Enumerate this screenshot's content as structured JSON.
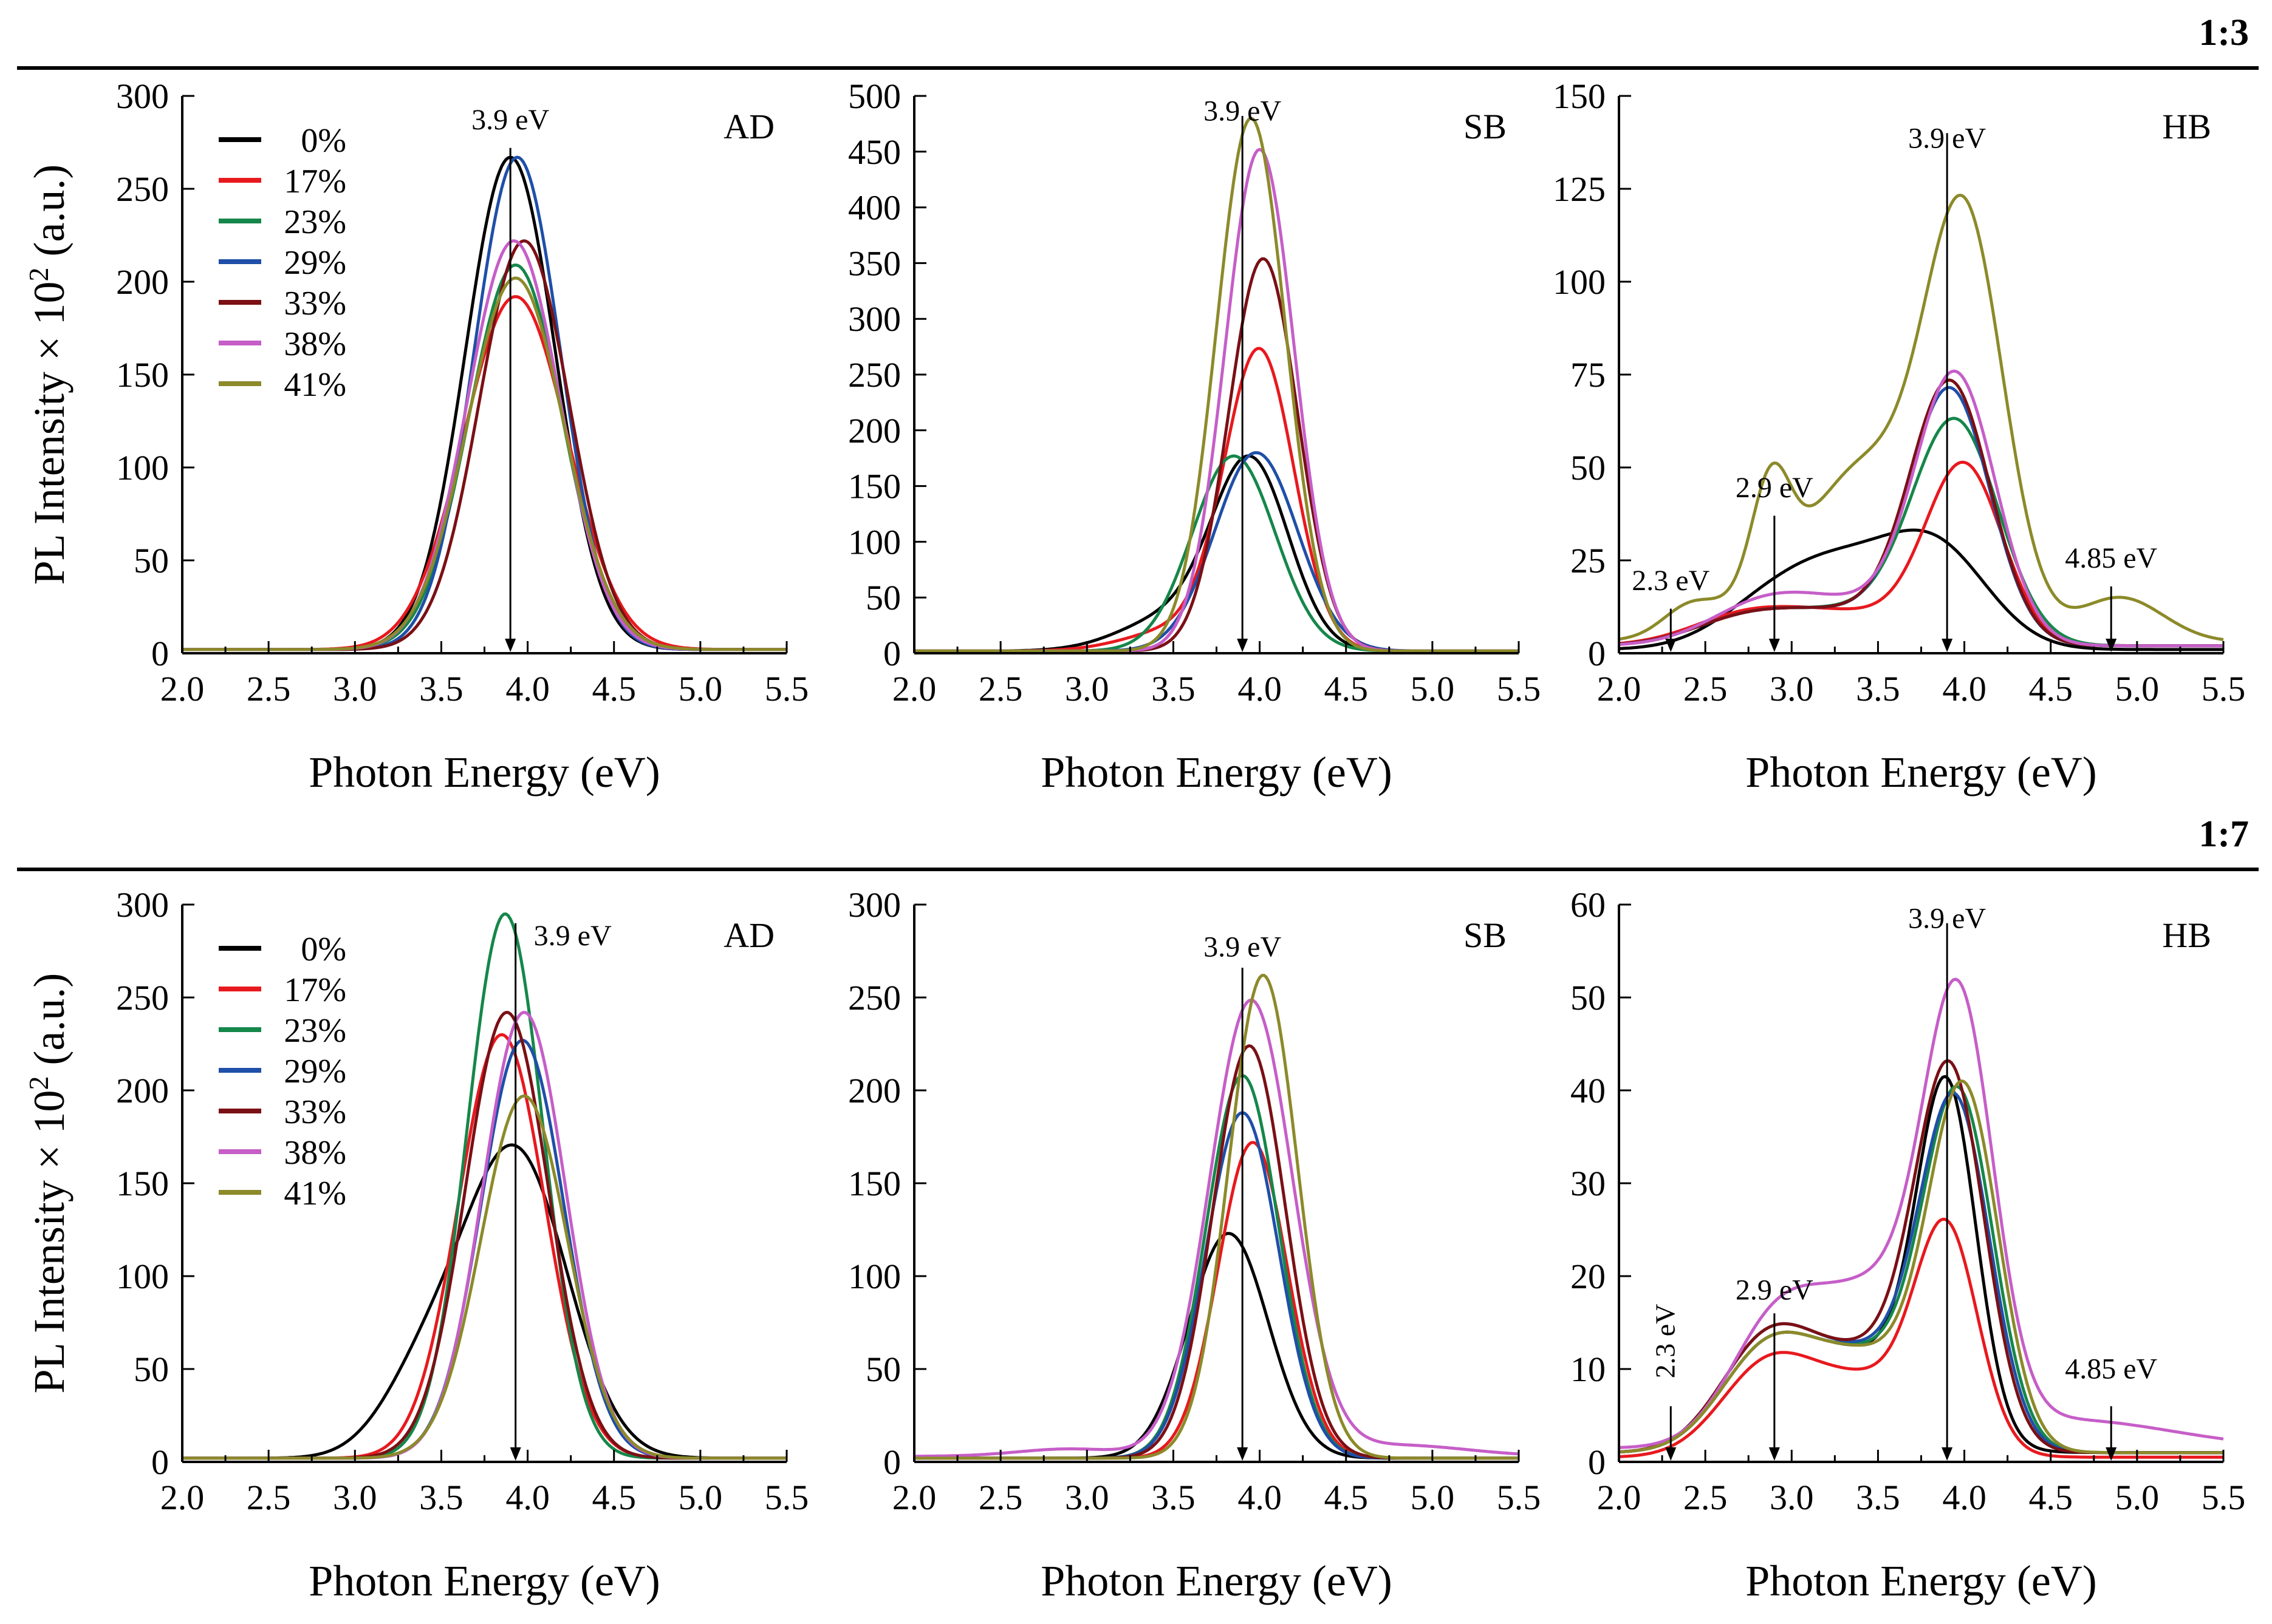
{
  "figure": {
    "ylabel": "PL Intensity × 10",
    "ylabel_sup": "2",
    "ylabel_unit": " (a.u.)",
    "xlabel": "Photon Energy (eV)",
    "legend": [
      {
        "label": "0%",
        "color": "#000000"
      },
      {
        "label": "17%",
        "color": "#e8191e"
      },
      {
        "label": "23%",
        "color": "#15874a"
      },
      {
        "label": "29%",
        "color": "#1f4fa8"
      },
      {
        "label": "33%",
        "color": "#7a1015"
      },
      {
        "label": "38%",
        "color": "#c65ec8"
      },
      {
        "label": "41%",
        "color": "#8c8a2a"
      }
    ]
  },
  "chart_data": [
    {
      "type": "line",
      "row": 0,
      "col": 0,
      "group_label": "1:3",
      "panel_label": "AD",
      "xlim": [
        2.0,
        5.5
      ],
      "ylim": [
        0,
        300
      ],
      "xticks": [
        2.0,
        2.5,
        3.0,
        3.5,
        4.0,
        4.5,
        5.0,
        5.5
      ],
      "yticks": [
        0,
        50,
        100,
        150,
        200,
        250,
        300
      ],
      "annotations": [
        {
          "text": "3.9 eV",
          "x": 3.9,
          "y_top": 272,
          "y_label": 282
        }
      ],
      "series": [
        {
          "name": "0%",
          "color": "#000000",
          "baseline": 2,
          "peaks": [
            [
              3.9,
              265,
              0.26
            ]
          ]
        },
        {
          "name": "17%",
          "color": "#e8191e",
          "baseline": 2,
          "peaks": [
            [
              3.93,
              190,
              0.3
            ]
          ]
        },
        {
          "name": "23%",
          "color": "#15874a",
          "baseline": 2,
          "peaks": [
            [
              3.93,
              207,
              0.27
            ]
          ]
        },
        {
          "name": "29%",
          "color": "#1f4fa8",
          "baseline": 2,
          "peaks": [
            [
              3.94,
              265,
              0.25
            ]
          ]
        },
        {
          "name": "33%",
          "color": "#7a1015",
          "baseline": 2,
          "peaks": [
            [
              3.98,
              220,
              0.26
            ]
          ]
        },
        {
          "name": "38%",
          "color": "#c65ec8",
          "baseline": 2,
          "peaks": [
            [
              3.92,
              220,
              0.27
            ]
          ]
        },
        {
          "name": "41%",
          "color": "#8c8a2a",
          "baseline": 2,
          "peaks": [
            [
              3.93,
              200,
              0.28
            ]
          ]
        }
      ]
    },
    {
      "type": "line",
      "row": 0,
      "col": 1,
      "group_label": "1:3",
      "panel_label": "SB",
      "xlim": [
        2.0,
        5.5
      ],
      "ylim": [
        0,
        500
      ],
      "xticks": [
        2.0,
        2.5,
        3.0,
        3.5,
        4.0,
        4.5,
        5.0,
        5.5
      ],
      "yticks": [
        0,
        50,
        100,
        150,
        200,
        250,
        300,
        350,
        400,
        450,
        500
      ],
      "annotations": [
        {
          "text": "3.9 eV",
          "x": 3.9,
          "y_top": 482,
          "y_label": 478
        }
      ],
      "series": [
        {
          "name": "0%",
          "color": "#000000",
          "baseline": 2,
          "peaks": [
            [
              3.95,
              165,
              0.22
            ],
            [
              3.5,
              30,
              0.3
            ]
          ]
        },
        {
          "name": "17%",
          "color": "#e8191e",
          "baseline": 2,
          "peaks": [
            [
              4.0,
              265,
              0.2
            ],
            [
              3.55,
              20,
              0.3
            ]
          ]
        },
        {
          "name": "23%",
          "color": "#15874a",
          "baseline": 2,
          "peaks": [
            [
              3.85,
              175,
              0.24
            ]
          ]
        },
        {
          "name": "29%",
          "color": "#1f4fa8",
          "baseline": 2,
          "peaks": [
            [
              3.98,
              178,
              0.24
            ]
          ]
        },
        {
          "name": "33%",
          "color": "#7a1015",
          "baseline": 2,
          "peaks": [
            [
              4.02,
              352,
              0.2
            ]
          ]
        },
        {
          "name": "38%",
          "color": "#c65ec8",
          "baseline": 2,
          "peaks": [
            [
              4.0,
              450,
              0.2
            ]
          ]
        },
        {
          "name": "41%",
          "color": "#8c8a2a",
          "baseline": 2,
          "peaks": [
            [
              3.95,
              478,
              0.2
            ]
          ]
        }
      ]
    },
    {
      "type": "line",
      "row": 0,
      "col": 2,
      "group_label": "1:3",
      "panel_label": "HB",
      "xlim": [
        2.0,
        5.5
      ],
      "ylim": [
        0,
        150
      ],
      "xticks": [
        2.0,
        2.5,
        3.0,
        3.5,
        4.0,
        4.5,
        5.0,
        5.5
      ],
      "yticks": [
        0,
        25,
        50,
        75,
        100,
        125,
        150
      ],
      "annotations": [
        {
          "text": "3.9 eV",
          "x": 3.9,
          "y_top": 140,
          "y_label": 136
        },
        {
          "text": "2.9 eV",
          "x": 2.9,
          "y_top": 37,
          "y_label": 42
        },
        {
          "text": "2.3 eV",
          "x": 2.3,
          "y_top": 12,
          "y_label": 17
        },
        {
          "text": "4.85 eV",
          "x": 4.85,
          "y_top": 18,
          "y_label": 23
        }
      ],
      "series": [
        {
          "name": "0%",
          "color": "#000000",
          "baseline": 1,
          "peaks": [
            [
              3.25,
              22,
              0.38
            ],
            [
              3.85,
              24,
              0.3
            ],
            [
              2.8,
              5,
              0.3
            ]
          ]
        },
        {
          "name": "17%",
          "color": "#e8191e",
          "baseline": 2,
          "peaks": [
            [
              4.0,
              46,
              0.22
            ],
            [
              3.3,
              9,
              0.5
            ],
            [
              2.7,
              5,
              0.3
            ]
          ]
        },
        {
          "name": "23%",
          "color": "#15874a",
          "baseline": 2,
          "peaks": [
            [
              3.95,
              58,
              0.25
            ],
            [
              3.3,
              9,
              0.45
            ],
            [
              2.7,
              5,
              0.3
            ]
          ]
        },
        {
          "name": "29%",
          "color": "#1f4fa8",
          "baseline": 2,
          "peaks": [
            [
              3.92,
              66,
              0.23
            ],
            [
              3.3,
              9,
              0.45
            ],
            [
              2.7,
              5,
              0.3
            ]
          ]
        },
        {
          "name": "33%",
          "color": "#7a1015",
          "baseline": 2,
          "peaks": [
            [
              3.92,
              68,
              0.23
            ],
            [
              3.3,
              9,
              0.45
            ],
            [
              2.7,
              5,
              0.3
            ]
          ]
        },
        {
          "name": "38%",
          "color": "#c65ec8",
          "baseline": 2,
          "peaks": [
            [
              3.95,
              70,
              0.23
            ],
            [
              3.3,
              11,
              0.45
            ],
            [
              2.8,
              7,
              0.3
            ]
          ]
        },
        {
          "name": "41%",
          "color": "#8c8a2a",
          "baseline": 3,
          "peaks": [
            [
              4.0,
              112,
              0.23
            ],
            [
              3.45,
              38,
              0.3
            ],
            [
              2.88,
              28,
              0.11
            ],
            [
              2.4,
              6,
              0.15
            ],
            [
              4.9,
              12,
              0.25
            ],
            [
              3.0,
              14,
              0.4
            ]
          ]
        }
      ]
    },
    {
      "type": "line",
      "row": 1,
      "col": 0,
      "group_label": "1:7",
      "panel_label": "AD",
      "xlim": [
        2.0,
        5.5
      ],
      "ylim": [
        0,
        300
      ],
      "xticks": [
        2.0,
        2.5,
        3.0,
        3.5,
        4.0,
        4.5,
        5.0,
        5.5
      ],
      "yticks": [
        0,
        50,
        100,
        150,
        200,
        250,
        300
      ],
      "annotations": [
        {
          "text": "3.9 eV",
          "x": 3.93,
          "y_top": 290,
          "y_label": 283,
          "label_right": true
        }
      ],
      "series": [
        {
          "name": "0%",
          "color": "#000000",
          "baseline": 2,
          "peaks": [
            [
              3.93,
              164,
              0.3
            ],
            [
              3.4,
              40,
              0.25
            ]
          ]
        },
        {
          "name": "17%",
          "color": "#e8191e",
          "baseline": 2,
          "peaks": [
            [
              3.85,
              228,
              0.25
            ]
          ]
        },
        {
          "name": "23%",
          "color": "#15874a",
          "baseline": 2,
          "peaks": [
            [
              3.87,
              293,
              0.22
            ]
          ]
        },
        {
          "name": "29%",
          "color": "#1f4fa8",
          "baseline": 2,
          "peaks": [
            [
              3.97,
              225,
              0.24
            ]
          ]
        },
        {
          "name": "33%",
          "color": "#7a1015",
          "baseline": 2,
          "peaks": [
            [
              3.88,
              240,
              0.24
            ]
          ]
        },
        {
          "name": "38%",
          "color": "#c65ec8",
          "baseline": 2,
          "peaks": [
            [
              3.98,
              240,
              0.24
            ]
          ]
        },
        {
          "name": "41%",
          "color": "#8c8a2a",
          "baseline": 2,
          "peaks": [
            [
              3.98,
              195,
              0.25
            ]
          ]
        }
      ]
    },
    {
      "type": "line",
      "row": 1,
      "col": 1,
      "group_label": "1:7",
      "panel_label": "SB",
      "xlim": [
        2.0,
        5.5
      ],
      "ylim": [
        0,
        300
      ],
      "xticks": [
        2.0,
        2.5,
        3.0,
        3.5,
        4.0,
        4.5,
        5.0,
        5.5
      ],
      "yticks": [
        0,
        50,
        100,
        150,
        200,
        250,
        300
      ],
      "annotations": [
        {
          "text": "3.9 eV",
          "x": 3.9,
          "y_top": 266,
          "y_label": 272
        }
      ],
      "series": [
        {
          "name": "0%",
          "color": "#000000",
          "baseline": 2,
          "peaks": [
            [
              3.82,
              121,
              0.23
            ]
          ]
        },
        {
          "name": "17%",
          "color": "#e8191e",
          "baseline": 2,
          "peaks": [
            [
              3.96,
              170,
              0.2
            ]
          ]
        },
        {
          "name": "23%",
          "color": "#15874a",
          "baseline": 2,
          "peaks": [
            [
              3.9,
              206,
              0.21
            ]
          ]
        },
        {
          "name": "29%",
          "color": "#1f4fa8",
          "baseline": 2,
          "peaks": [
            [
              3.9,
              186,
              0.21
            ]
          ]
        },
        {
          "name": "33%",
          "color": "#7a1015",
          "baseline": 2,
          "peaks": [
            [
              3.94,
              222,
              0.21
            ]
          ]
        },
        {
          "name": "38%",
          "color": "#c65ec8",
          "baseline": 3,
          "peaks": [
            [
              3.95,
              245,
              0.24
            ],
            [
              4.8,
              6,
              0.4
            ],
            [
              2.9,
              4,
              0.3
            ]
          ]
        },
        {
          "name": "41%",
          "color": "#8c8a2a",
          "baseline": 2,
          "peaks": [
            [
              4.02,
              260,
              0.2
            ]
          ]
        }
      ]
    },
    {
      "type": "line",
      "row": 1,
      "col": 2,
      "group_label": "1:7",
      "panel_label": "HB",
      "xlim": [
        2.0,
        5.5
      ],
      "ylim": [
        0,
        60
      ],
      "xticks": [
        2.0,
        2.5,
        3.0,
        3.5,
        4.0,
        4.5,
        5.0,
        5.5
      ],
      "yticks": [
        0,
        10,
        20,
        30,
        40,
        50,
        60
      ],
      "annotations": [
        {
          "text": "3.9 eV",
          "x": 3.9,
          "y_top": 58,
          "y_label": 57.5
        },
        {
          "text": "2.9 eV",
          "x": 2.9,
          "y_top": 16,
          "y_label": 17.5
        },
        {
          "text": "2.3 eV",
          "x": 2.3,
          "y_top": 6,
          "y_label": 9,
          "rotate": true
        },
        {
          "text": "4.85 eV",
          "x": 4.85,
          "y_top": 6,
          "y_label": 9
        }
      ],
      "series": [
        {
          "name": "0%",
          "color": "#000000",
          "baseline": 1,
          "peaks": [
            [
              3.9,
              36,
              0.17
            ],
            [
              3.45,
              10,
              0.35
            ],
            [
              2.85,
              10,
              0.27
            ]
          ]
        },
        {
          "name": "17%",
          "color": "#e8191e",
          "baseline": 0.5,
          "peaks": [
            [
              3.9,
              22,
              0.18
            ],
            [
              3.45,
              8,
              0.35
            ],
            [
              2.85,
              9,
              0.27
            ]
          ]
        },
        {
          "name": "23%",
          "color": "#15874a",
          "baseline": 1,
          "peaks": [
            [
              3.97,
              36,
              0.2
            ],
            [
              3.45,
              10,
              0.35
            ],
            [
              2.85,
              10,
              0.27
            ]
          ]
        },
        {
          "name": "29%",
          "color": "#1f4fa8",
          "baseline": 1,
          "peaks": [
            [
              3.95,
              35,
              0.2
            ],
            [
              3.45,
              10,
              0.35
            ],
            [
              2.85,
              11,
              0.27
            ]
          ]
        },
        {
          "name": "33%",
          "color": "#7a1015",
          "baseline": 1,
          "peaks": [
            [
              3.92,
              38,
              0.2
            ],
            [
              3.45,
              10,
              0.35
            ],
            [
              2.85,
              11,
              0.27
            ]
          ]
        },
        {
          "name": "38%",
          "color": "#c65ec8",
          "baseline": 1.5,
          "peaks": [
            [
              3.97,
              42,
              0.2
            ],
            [
              3.5,
              16,
              0.35
            ],
            [
              2.9,
              12,
              0.27
            ],
            [
              4.6,
              3,
              0.6
            ]
          ]
        },
        {
          "name": "41%",
          "color": "#8c8a2a",
          "baseline": 1,
          "peaks": [
            [
              4.0,
              37,
              0.2
            ],
            [
              3.45,
              10,
              0.35
            ],
            [
              2.85,
              10,
              0.27
            ]
          ]
        }
      ]
    }
  ]
}
